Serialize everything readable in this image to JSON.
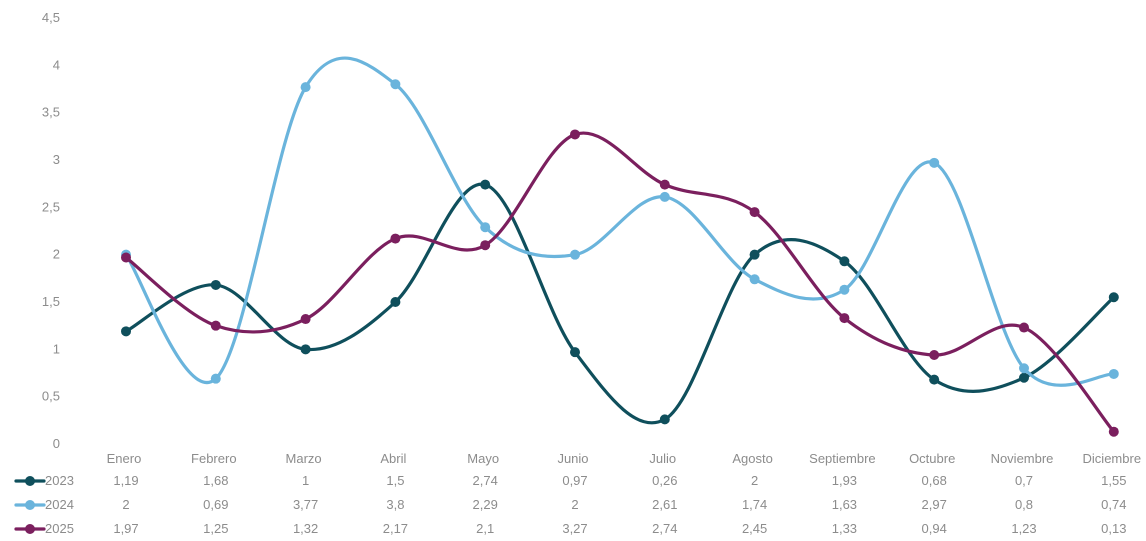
{
  "chart_data": {
    "type": "line",
    "smooth": true,
    "title": "",
    "xlabel": "",
    "ylabel": "",
    "ylim": [
      0,
      4.5
    ],
    "yticks": [
      "0",
      "0,5",
      "1",
      "1,5",
      "2",
      "2,5",
      "3",
      "3,5",
      "4",
      "4,5"
    ],
    "grid": false,
    "legend": "data-table",
    "categories": [
      "Enero",
      "Febrero",
      "Marzo",
      "Abril",
      "Mayo",
      "Junio",
      "Julio",
      "Agosto",
      "Septiembre",
      "Octubre",
      "Noviembre",
      "Diciembre"
    ],
    "series": [
      {
        "name": "2023",
        "color": "#0f4f5c",
        "values": [
          1.19,
          1.68,
          1,
          1.5,
          2.74,
          0.97,
          0.26,
          2,
          1.93,
          0.68,
          0.7,
          1.55
        ],
        "labels": [
          "1,19",
          "1,68",
          "1",
          "1,5",
          "2,74",
          "0,97",
          "0,26",
          "2",
          "1,93",
          "0,68",
          "0,7",
          "1,55"
        ]
      },
      {
        "name": "2024",
        "color": "#6ab4dc",
        "values": [
          2,
          0.69,
          3.77,
          3.8,
          2.29,
          2,
          2.61,
          1.74,
          1.63,
          2.97,
          0.8,
          0.74
        ],
        "labels": [
          "2",
          "0,69",
          "3,77",
          "3,8",
          "2,29",
          "2",
          "2,61",
          "1,74",
          "1,63",
          "2,97",
          "0,8",
          "0,74"
        ]
      },
      {
        "name": "2025",
        "color": "#7b1f5e",
        "values": [
          1.97,
          1.25,
          1.32,
          2.17,
          2.1,
          3.27,
          2.74,
          2.45,
          1.33,
          0.94,
          1.23,
          0.13
        ],
        "labels": [
          "1,97",
          "1,25",
          "1,32",
          "2,17",
          "2,1",
          "3,27",
          "2,74",
          "2,45",
          "1,33",
          "0,94",
          "1,23",
          "0,13"
        ]
      }
    ]
  }
}
